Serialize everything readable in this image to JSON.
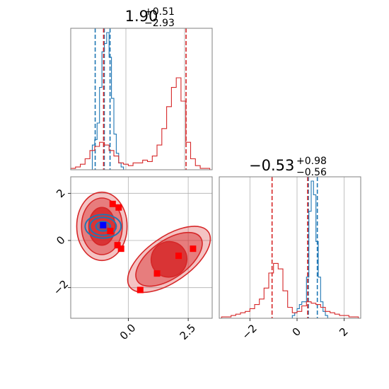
{
  "colors": {
    "blue": "#1f77b4",
    "red": "#d62728",
    "marker_red": "#ff0000",
    "marker_blue": "#0000ff",
    "frame": "#808080",
    "grid": "#b0b0b0"
  },
  "chart_data": [
    {
      "type": "histogram",
      "panel": "top-left",
      "title": {
        "main": "1.90",
        "sup": "+0.51",
        "sub": "−2.93"
      },
      "xlim": [
        -2.4,
        3.5
      ],
      "grid": true,
      "series": [
        {
          "name": "",
          "color": "#1f77b4",
          "x": [
            -1.45,
            -1.35,
            -1.25,
            -1.15,
            -1.05,
            -0.95,
            -0.85,
            -0.75,
            -0.65,
            -0.55,
            -0.45,
            -0.35,
            -0.25
          ],
          "values": [
            0.18,
            0.22,
            0.34,
            0.6,
            0.86,
            0.92,
            1.0,
            0.82,
            0.52,
            0.26,
            0.12,
            0.05,
            0.02
          ],
          "quantile_lines": [
            -1.38,
            -1.0,
            -0.76
          ]
        },
        {
          "name": "",
          "color": "#d62728",
          "x": [
            -2.3,
            -2.1,
            -1.9,
            -1.7,
            -1.5,
            -1.3,
            -1.1,
            -0.9,
            -0.7,
            -0.5,
            -0.3,
            -0.1,
            0.1,
            0.3,
            0.5,
            0.7,
            0.9,
            1.1,
            1.3,
            1.5,
            1.7,
            1.9,
            2.1,
            2.3,
            2.5,
            2.7,
            2.9,
            3.1,
            3.3
          ],
          "values": [
            0.01,
            0.02,
            0.04,
            0.08,
            0.14,
            0.17,
            0.2,
            0.18,
            0.14,
            0.1,
            0.05,
            0.04,
            0.03,
            0.05,
            0.05,
            0.07,
            0.06,
            0.1,
            0.18,
            0.3,
            0.46,
            0.6,
            0.67,
            0.5,
            0.2,
            0.08,
            0.03,
            0.01,
            0.01
          ],
          "quantile_lines": [
            -1.03,
            2.41
          ]
        }
      ]
    },
    {
      "type": "histogram",
      "panel": "bottom-right",
      "title": {
        "main": "−0.53",
        "sup": "+0.98",
        "sub": "−0.56"
      },
      "xlim": [
        -3.3,
        2.7
      ],
      "xticks": [
        -2,
        0,
        2
      ],
      "xtick_labels": [
        "−2",
        "0",
        "2"
      ],
      "grid": true,
      "series": [
        {
          "name": "",
          "color": "#1f77b4",
          "x": [
            -0.15,
            -0.05,
            0.05,
            0.15,
            0.25,
            0.35,
            0.45,
            0.55,
            0.65,
            0.75,
            0.85,
            0.95,
            1.05,
            1.15,
            1.25
          ],
          "values": [
            0.02,
            0.04,
            0.07,
            0.1,
            0.12,
            0.12,
            0.3,
            0.78,
            1.0,
            0.9,
            0.56,
            0.3,
            0.12,
            0.05,
            0.02
          ],
          "quantile_lines": [
            0.48,
            0.86
          ]
        },
        {
          "name": "",
          "color": "#d62728",
          "x": [
            -3.1,
            -2.9,
            -2.7,
            -2.5,
            -2.3,
            -2.1,
            -1.9,
            -1.7,
            -1.5,
            -1.3,
            -1.1,
            -0.9,
            -0.7,
            -0.5,
            -0.3,
            -0.1,
            0.1,
            0.3,
            0.5,
            0.7,
            0.9,
            1.1,
            1.3,
            1.5,
            1.7,
            1.9,
            2.1,
            2.3,
            2.5
          ],
          "values": [
            0.01,
            0.01,
            0.02,
            0.03,
            0.04,
            0.05,
            0.07,
            0.1,
            0.14,
            0.22,
            0.33,
            0.4,
            0.36,
            0.2,
            0.08,
            0.04,
            0.05,
            0.09,
            0.12,
            0.11,
            0.1,
            0.08,
            0.05,
            0.04,
            0.03,
            0.02,
            0.02,
            0.01,
            0.01
          ],
          "quantile_lines": [
            -1.06,
            0.45
          ]
        }
      ]
    },
    {
      "type": "contour",
      "panel": "bottom-left",
      "xlim": [
        -2.4,
        3.5
      ],
      "ylim": [
        -3.3,
        2.7
      ],
      "xticks": [
        0.0,
        2.5
      ],
      "xtick_labels": [
        "0.0",
        "2.5"
      ],
      "yticks": [
        -2,
        0,
        2
      ],
      "ytick_labels": [
        "−2",
        "0",
        "2"
      ],
      "grid": true,
      "red_blobs": [
        {
          "cx": -1.1,
          "cy": 0.6,
          "rx_levels": [
            1.05,
            0.85,
            0.55
          ],
          "ry_levels": [
            1.45,
            1.2,
            0.8
          ],
          "angle": 0
        },
        {
          "cx": 1.7,
          "cy": -0.8,
          "rx_levels": [
            2.0,
            1.6,
            0.75
          ],
          "ry_levels": [
            0.95,
            0.8,
            0.75
          ],
          "angle": -35
        }
      ],
      "blue_blob": {
        "cx": -1.05,
        "cy": 0.6,
        "rx_levels": [
          0.75,
          0.55,
          0.3
        ],
        "ry_levels": [
          0.5,
          0.38,
          0.2
        ],
        "angle": 0
      },
      "red_markers": [
        {
          "x": -0.65,
          "y": 1.55
        },
        {
          "x": -0.4,
          "y": 1.4
        },
        {
          "x": -0.75,
          "y": 0.4
        },
        {
          "x": -0.45,
          "y": -0.2
        },
        {
          "x": -0.3,
          "y": -0.35
        },
        {
          "x": 1.2,
          "y": -1.4
        },
        {
          "x": 0.5,
          "y": -2.1
        },
        {
          "x": 2.1,
          "y": -0.65
        },
        {
          "x": 2.7,
          "y": -0.35
        }
      ],
      "blue_markers": [
        {
          "x": -1.05,
          "y": 0.65
        }
      ]
    }
  ]
}
